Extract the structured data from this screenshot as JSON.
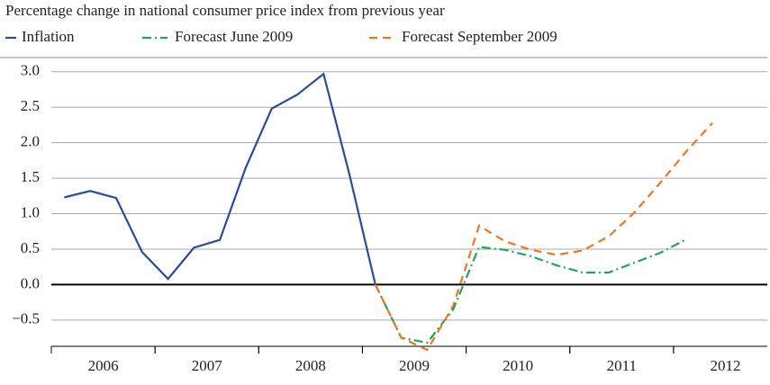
{
  "chart_data": {
    "type": "line",
    "title": "Percentage change in national consumer price index from previous year",
    "xlim": [
      2006,
      2012.8
    ],
    "xticks": [
      {
        "value": 2006.5,
        "label": "2006"
      },
      {
        "value": 2007.5,
        "label": "2007"
      },
      {
        "value": 2008.5,
        "label": "2008"
      },
      {
        "value": 2009.5,
        "label": "2009"
      },
      {
        "value": 2010.5,
        "label": "2010"
      },
      {
        "value": 2011.5,
        "label": "2011"
      },
      {
        "value": 2012.5,
        "label": "2012"
      }
    ],
    "ylim": [
      -0.87,
      3.2
    ],
    "yticks": [
      {
        "value": -0.5,
        "label": "−0.5"
      },
      {
        "value": 0,
        "label": "0.0"
      },
      {
        "value": 0.5,
        "label": "0.5"
      },
      {
        "value": 1,
        "label": "1.0"
      },
      {
        "value": 1.5,
        "label": "1.5"
      },
      {
        "value": 2,
        "label": "2.0"
      },
      {
        "value": 2.5,
        "label": "2.5"
      },
      {
        "value": 3,
        "label": "3.0"
      }
    ],
    "grid": true,
    "series": [
      {
        "name": "Inflation",
        "color": "#2b4c9b",
        "dash": "solid",
        "x": [
          2006.125,
          2006.375,
          2006.625,
          2006.875,
          2007.125,
          2007.375,
          2007.625,
          2007.875,
          2008.125,
          2008.375,
          2008.625,
          2008.875,
          2009.125
        ],
        "values": [
          1.23,
          1.32,
          1.22,
          0.46,
          0.08,
          0.52,
          0.63,
          1.65,
          2.48,
          2.68,
          2.97,
          1.55,
          0.0
        ]
      },
      {
        "name": "Forecast June 2009",
        "color": "#1fa560",
        "dash": "dashdot",
        "x": [
          2009.125,
          2009.375,
          2009.625,
          2009.875,
          2010.125,
          2010.375,
          2010.625,
          2010.875,
          2011.125,
          2011.375,
          2011.625,
          2011.875,
          2012.125
        ],
        "values": [
          0.0,
          -0.75,
          -0.82,
          -0.35,
          0.53,
          0.49,
          0.4,
          0.27,
          0.17,
          0.17,
          0.31,
          0.45,
          0.64
        ]
      },
      {
        "name": "Forecast September 2009",
        "color": "#ee7623",
        "dash": "dashed",
        "x": [
          2009.125,
          2009.375,
          2009.625,
          2009.875,
          2010.125,
          2010.375,
          2010.625,
          2010.875,
          2011.125,
          2011.375,
          2011.625,
          2011.875,
          2012.125,
          2012.375
        ],
        "values": [
          0.0,
          -0.75,
          -0.92,
          -0.3,
          0.83,
          0.61,
          0.49,
          0.42,
          0.48,
          0.68,
          1.02,
          1.44,
          1.88,
          2.28
        ]
      }
    ]
  }
}
